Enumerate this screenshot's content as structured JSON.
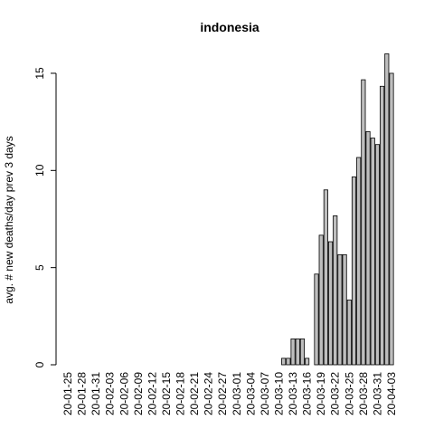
{
  "chart_data": {
    "type": "bar",
    "title": "indonesia",
    "y_label": "avg. # new deaths/day prev  3  days",
    "categories": [
      "20-01-25",
      null,
      null,
      "20-01-28",
      null,
      null,
      "20-01-31",
      null,
      null,
      "20-02-03",
      null,
      null,
      "20-02-06",
      null,
      null,
      "20-02-09",
      null,
      null,
      "20-02-12",
      null,
      null,
      "20-02-15",
      null,
      null,
      "20-02-18",
      null,
      null,
      "20-02-21",
      null,
      null,
      "20-02-24",
      null,
      null,
      "20-02-27",
      null,
      null,
      "20-03-01",
      null,
      null,
      "20-03-04",
      null,
      null,
      "20-03-07",
      null,
      null,
      "20-03-10",
      null,
      null,
      "20-03-13",
      null,
      null,
      "20-03-16",
      null,
      null,
      "20-03-19",
      null,
      null,
      "20-03-22",
      null,
      null,
      "20-03-25",
      null,
      null,
      "20-03-28",
      null,
      null,
      "20-03-31",
      null,
      null,
      "20-04-03"
    ],
    "values": [
      0,
      0,
      0,
      0,
      0,
      0,
      0,
      0,
      0,
      0,
      0,
      0,
      0,
      0,
      0,
      0,
      0,
      0,
      0,
      0,
      0,
      0,
      0,
      0,
      0,
      0,
      0,
      0,
      0,
      0,
      0,
      0,
      0,
      0,
      0,
      0,
      0,
      0,
      0,
      0,
      0,
      0,
      0,
      0,
      0,
      0,
      0.333,
      0.333,
      1.333,
      1.333,
      1.333,
      0.333,
      0,
      4.667,
      6.667,
      9,
      6.333,
      7.667,
      5.667,
      5.667,
      3.333,
      9.667,
      10.667,
      14.667,
      12,
      11.667,
      11.333,
      14.333,
      16,
      15
    ],
    "color": "#bebebe",
    "ylim": [
      0,
      16
    ],
    "yticks": [
      0,
      5,
      10,
      15
    ]
  }
}
